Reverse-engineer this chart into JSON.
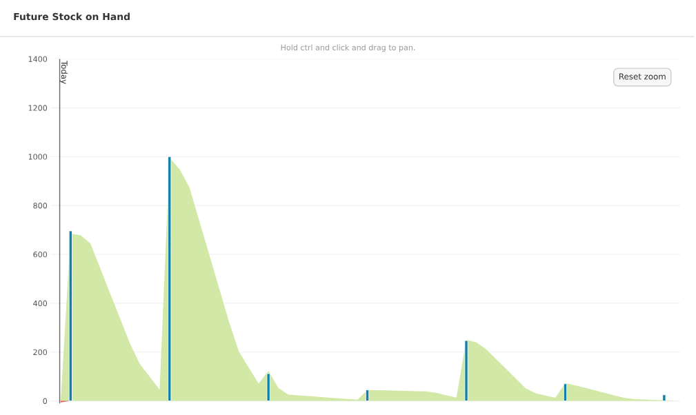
{
  "chart_data": {
    "type": "area",
    "title": "Future Stock on Hand",
    "annotations": [
      "Hold ctrl and click and drag to pan.",
      "Reset zoom",
      "Today"
    ],
    "categories": [
      null,
      null,
      null,
      null,
      null,
      null,
      null,
      null,
      null,
      null,
      null,
      null,
      null,
      null,
      null,
      null,
      null,
      null,
      null,
      null,
      null,
      null,
      null,
      null,
      null,
      null,
      null,
      null,
      null,
      null,
      null,
      null,
      null,
      null,
      null,
      null,
      null,
      null,
      null,
      null,
      null,
      null,
      null,
      null,
      null,
      null,
      null,
      null,
      null,
      null,
      null,
      null,
      null,
      null,
      null,
      null,
      null,
      null,
      null,
      null,
      null,
      null,
      null
    ],
    "series": [
      {
        "color": "#d2e8a6",
        "values": [
          0,
          685,
          678,
          645,
          543,
          440,
          338,
          235,
          151,
          99,
          46,
          996,
          949,
          876,
          738,
          601,
          463,
          326,
          203,
          137,
          71,
          123,
          53,
          26,
          23,
          20,
          17,
          14,
          11,
          8,
          5,
          45,
          44,
          43,
          42,
          41,
          40,
          39,
          33,
          23,
          14,
          250,
          240,
          212,
          172,
          132,
          92,
          52,
          31,
          22,
          13,
          73,
          64,
          54,
          43,
          33,
          22,
          12,
          7,
          6,
          4,
          3,
          1
        ]
      },
      {
        "color": "#e06060",
        "values": [
          -6,
          0,
          null,
          null,
          null,
          null,
          null,
          null,
          null,
          null,
          null,
          null,
          null,
          null,
          null,
          null,
          null,
          null,
          null,
          null,
          null,
          null,
          null,
          null,
          null,
          null,
          null,
          null,
          null,
          null,
          null,
          null,
          null,
          null,
          null,
          null,
          null,
          null,
          null,
          null,
          null,
          null,
          null,
          null,
          null,
          null,
          null,
          null,
          null,
          null,
          null,
          null,
          null,
          null,
          null,
          null,
          null,
          null,
          null,
          null,
          null,
          null,
          null
        ]
      },
      {
        "type": "bar",
        "color": "#1380a8",
        "values": [
          null,
          696,
          null,
          null,
          null,
          null,
          null,
          null,
          null,
          null,
          null,
          1000,
          null,
          null,
          null,
          null,
          null,
          null,
          null,
          null,
          null,
          112,
          null,
          null,
          null,
          null,
          null,
          null,
          null,
          null,
          null,
          45,
          null,
          null,
          null,
          null,
          null,
          null,
          null,
          null,
          null,
          247,
          null,
          null,
          null,
          null,
          null,
          null,
          null,
          null,
          null,
          70,
          null,
          null,
          null,
          null,
          null,
          null,
          null,
          null,
          null,
          25,
          null
        ]
      }
    ],
    "ylim": [
      -10,
      1400
    ],
    "yticks": [
      0,
      200,
      400,
      600,
      800,
      1000,
      1200,
      1400
    ],
    "grid": "y"
  }
}
